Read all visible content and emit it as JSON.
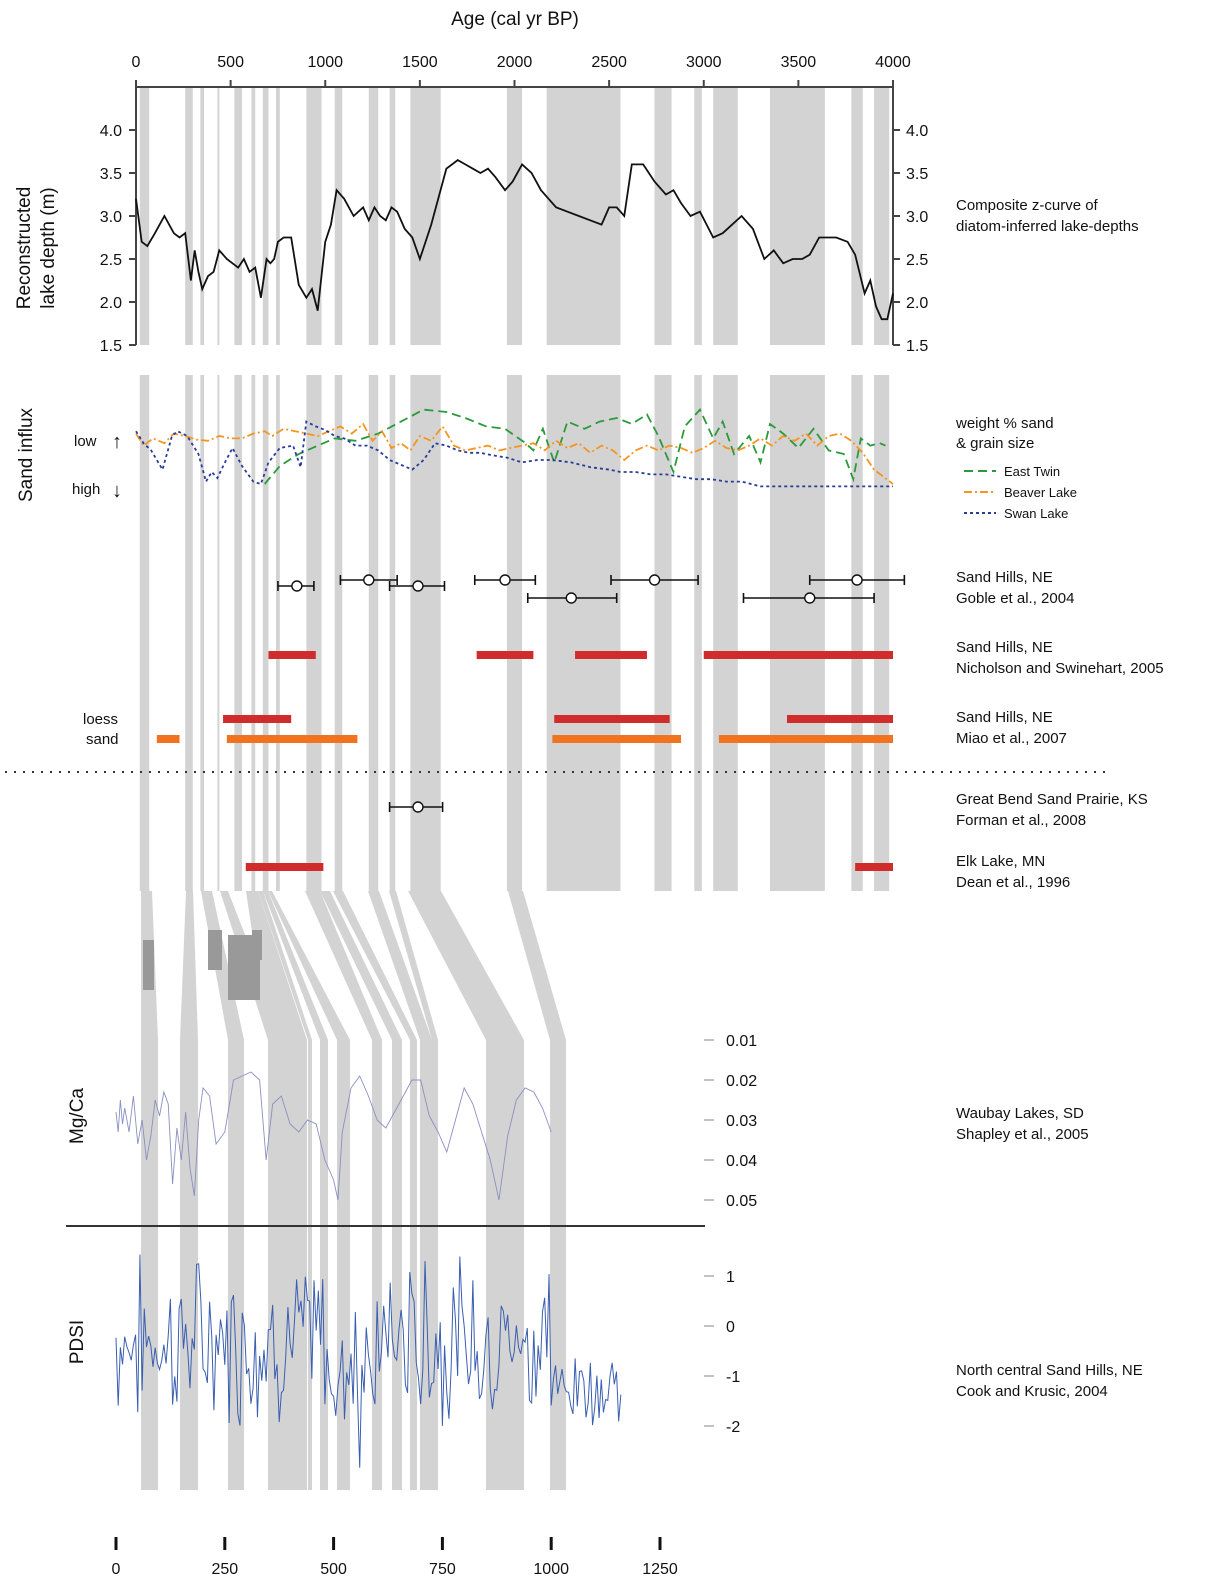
{
  "chart_data": {
    "type": "line",
    "top_axis": {
      "title": "Age (cal yr BP)",
      "ticks": [
        "0",
        "500",
        "1000",
        "1500",
        "2000",
        "2500",
        "3000",
        "3500",
        "4000"
      ],
      "range": [
        0,
        4000
      ]
    },
    "shaded_bands": [
      [
        20,
        70
      ],
      [
        260,
        300
      ],
      [
        340,
        360
      ],
      [
        430,
        440
      ],
      [
        520,
        560
      ],
      [
        610,
        630
      ],
      [
        670,
        700
      ],
      [
        740,
        760
      ],
      [
        900,
        980
      ],
      [
        1050,
        1090
      ],
      [
        1230,
        1280
      ],
      [
        1340,
        1370
      ],
      [
        1450,
        1610
      ],
      [
        1960,
        2040
      ],
      [
        2170,
        2560
      ],
      [
        2740,
        2830
      ],
      [
        2950,
        2990
      ],
      [
        3050,
        3180
      ],
      [
        3350,
        3640
      ],
      [
        3780,
        3840
      ],
      [
        3900,
        3980
      ]
    ],
    "lake_depth": {
      "ylabel": "Reconstructed lake depth (m)",
      "ylabel_lines": [
        "Reconstructed",
        "lake depth (m)"
      ],
      "yticks": [
        "4.0",
        "3.5",
        "3.0",
        "2.5",
        "2.0",
        "1.5"
      ],
      "ylim": [
        1.5,
        4.5
      ],
      "label_lines": [
        "Composite z-curve of",
        "diatom-inferred lake-depths"
      ],
      "x": [
        0,
        30,
        60,
        100,
        150,
        200,
        230,
        260,
        290,
        310,
        330,
        350,
        380,
        410,
        440,
        480,
        510,
        540,
        570,
        600,
        630,
        660,
        690,
        710,
        730,
        750,
        780,
        820,
        860,
        900,
        930,
        960,
        980,
        1000,
        1030,
        1060,
        1100,
        1150,
        1200,
        1230,
        1260,
        1290,
        1320,
        1350,
        1380,
        1420,
        1460,
        1500,
        1560,
        1640,
        1700,
        1740,
        1780,
        1820,
        1860,
        1900,
        1950,
        1990,
        2040,
        2090,
        2140,
        2180,
        2220,
        2280,
        2340,
        2400,
        2460,
        2500,
        2540,
        2580,
        2620,
        2680,
        2740,
        2800,
        2840,
        2880,
        2930,
        2980,
        3050,
        3100,
        3150,
        3200,
        3260,
        3320,
        3370,
        3420,
        3470,
        3520,
        3560,
        3610,
        3650,
        3700,
        3760,
        3800,
        3850,
        3880,
        3910,
        3940,
        3970,
        4000
      ],
      "y": [
        3.2,
        2.7,
        2.65,
        2.8,
        3.0,
        2.8,
        2.75,
        2.8,
        2.25,
        2.6,
        2.35,
        2.15,
        2.3,
        2.35,
        2.6,
        2.5,
        2.45,
        2.4,
        2.5,
        2.35,
        2.4,
        2.05,
        2.5,
        2.45,
        2.5,
        2.7,
        2.75,
        2.75,
        2.2,
        2.05,
        2.15,
        1.9,
        2.3,
        2.7,
        2.9,
        3.3,
        3.2,
        3.0,
        3.1,
        2.95,
        3.1,
        3.0,
        2.95,
        3.1,
        3.05,
        2.85,
        2.75,
        2.5,
        2.9,
        3.55,
        3.65,
        3.6,
        3.55,
        3.5,
        3.55,
        3.45,
        3.3,
        3.4,
        3.6,
        3.5,
        3.3,
        3.2,
        3.1,
        3.05,
        3.0,
        2.95,
        2.9,
        3.1,
        3.1,
        3.0,
        3.6,
        3.6,
        3.4,
        3.25,
        3.3,
        3.15,
        3.0,
        3.05,
        2.75,
        2.8,
        2.9,
        3.0,
        2.85,
        2.5,
        2.6,
        2.45,
        2.5,
        2.5,
        2.55,
        2.75,
        2.75,
        2.75,
        2.7,
        2.55,
        2.1,
        2.25,
        1.95,
        1.8,
        1.8,
        2.1
      ]
    },
    "sand_influx": {
      "ylabel": "Sand influx",
      "low_label": "low",
      "high_label": "high",
      "legend_title_lines": [
        "weight % sand",
        "& grain size"
      ],
      "series": [
        {
          "name": "East Twin",
          "color": "#2a9a3a",
          "x": [
            680,
            760,
            860,
            960,
            1050,
            1160,
            1280,
            1400,
            1520,
            1640,
            1740,
            1850,
            1950,
            2050,
            2100,
            2150,
            2210,
            2280,
            2370,
            2450,
            2540,
            2620,
            2700,
            2760,
            2840,
            2900,
            2980,
            3050,
            3100,
            3160,
            3240,
            3300,
            3350,
            3420,
            3500,
            3580,
            3660,
            3740,
            3790,
            3830,
            3880,
            3930,
            3960
          ],
          "y": [
            0.3,
            0.45,
            0.55,
            0.62,
            0.68,
            0.66,
            0.72,
            0.82,
            0.92,
            0.9,
            0.85,
            0.78,
            0.76,
            0.65,
            0.58,
            0.76,
            0.48,
            0.82,
            0.76,
            0.82,
            0.85,
            0.8,
            0.88,
            0.7,
            0.4,
            0.78,
            0.92,
            0.68,
            0.82,
            0.55,
            0.7,
            0.48,
            0.8,
            0.72,
            0.6,
            0.76,
            0.58,
            0.55,
            0.34,
            0.68,
            0.62,
            0.64,
            0.62
          ]
        },
        {
          "name": "Beaver Lake",
          "color": "#f5951f",
          "x": [
            0,
            40,
            90,
            150,
            200,
            260,
            320,
            380,
            440,
            500,
            560,
            620,
            680,
            720,
            780,
            840,
            900,
            960,
            1020,
            1080,
            1140,
            1200,
            1250,
            1300,
            1350,
            1400,
            1450,
            1500,
            1560,
            1620,
            1680,
            1740,
            1800,
            1860,
            1920,
            1980,
            2040,
            2100,
            2160,
            2220,
            2280,
            2340,
            2400,
            2460,
            2520,
            2580,
            2640,
            2700,
            2760,
            2820,
            2880,
            2940,
            3000,
            3060,
            3120,
            3180,
            3240,
            3300,
            3360,
            3420,
            3480,
            3540,
            3600,
            3660,
            3720,
            3780,
            3840,
            3900,
            3950,
            4000
          ],
          "y": [
            0.72,
            0.62,
            0.68,
            0.64,
            0.72,
            0.7,
            0.67,
            0.66,
            0.7,
            0.68,
            0.68,
            0.72,
            0.74,
            0.7,
            0.76,
            0.74,
            0.72,
            0.7,
            0.74,
            0.78,
            0.72,
            0.8,
            0.66,
            0.74,
            0.6,
            0.64,
            0.58,
            0.7,
            0.66,
            0.78,
            0.62,
            0.58,
            0.6,
            0.62,
            0.58,
            0.6,
            0.62,
            0.64,
            0.58,
            0.66,
            0.6,
            0.64,
            0.56,
            0.62,
            0.58,
            0.5,
            0.58,
            0.62,
            0.58,
            0.62,
            0.6,
            0.56,
            0.6,
            0.66,
            0.6,
            0.58,
            0.62,
            0.68,
            0.62,
            0.7,
            0.66,
            0.72,
            0.62,
            0.7,
            0.72,
            0.66,
            0.56,
            0.42,
            0.36,
            0.3
          ]
        },
        {
          "name": "Swan Lake",
          "color": "#2a3c9a",
          "x": [
            0,
            40,
            80,
            140,
            190,
            220,
            270,
            330,
            370,
            400,
            430,
            470,
            510,
            560,
            620,
            660,
            700,
            760,
            830,
            870,
            900,
            950,
            1000,
            1050,
            1100,
            1160,
            1220,
            1280,
            1340,
            1400,
            1460,
            1520,
            1580,
            1640,
            1700,
            1760,
            1820,
            1880,
            1960,
            2040,
            2120,
            2200,
            2300,
            2400,
            2500,
            2560,
            2640,
            2720,
            2800,
            2880,
            2960,
            3040,
            3120,
            3200,
            3300,
            3400,
            3500,
            3600,
            3700,
            3800,
            3900,
            4000
          ],
          "y": [
            0.74,
            0.64,
            0.58,
            0.42,
            0.7,
            0.74,
            0.7,
            0.55,
            0.32,
            0.4,
            0.35,
            0.48,
            0.6,
            0.45,
            0.32,
            0.3,
            0.48,
            0.6,
            0.62,
            0.44,
            0.82,
            0.78,
            0.75,
            0.7,
            0.68,
            0.62,
            0.62,
            0.58,
            0.5,
            0.46,
            0.42,
            0.5,
            0.64,
            0.62,
            0.58,
            0.56,
            0.56,
            0.54,
            0.52,
            0.48,
            0.5,
            0.5,
            0.48,
            0.44,
            0.42,
            0.4,
            0.4,
            0.38,
            0.38,
            0.36,
            0.34,
            0.34,
            0.32,
            0.32,
            0.28,
            0.28,
            0.28,
            0.28,
            0.28,
            0.28,
            0.28,
            0.28
          ]
        }
      ]
    },
    "date_points": {
      "label_lines": [
        "Sand Hills, NE",
        "Goble et al., 2004"
      ],
      "points": [
        {
          "x": 850,
          "lo": 750,
          "hi": 940,
          "row": 1
        },
        {
          "x": 1230,
          "lo": 1080,
          "hi": 1380,
          "row": 0
        },
        {
          "x": 1490,
          "lo": 1340,
          "hi": 1630,
          "row": 1
        },
        {
          "x": 1950,
          "lo": 1790,
          "hi": 2110,
          "row": 0
        },
        {
          "x": 2300,
          "lo": 2070,
          "hi": 2540,
          "row": 2
        },
        {
          "x": 2740,
          "lo": 2510,
          "hi": 2970,
          "row": 0
        },
        {
          "x": 3810,
          "lo": 3560,
          "hi": 4060,
          "row": 0
        },
        {
          "x": 3560,
          "lo": 3210,
          "hi": 3900,
          "row": 2
        }
      ]
    },
    "nicholson": {
      "label_lines": [
        "Sand Hills, NE",
        "Nicholson and Swinehart, 2005"
      ],
      "bars": [
        [
          700,
          950
        ],
        [
          1800,
          2100
        ],
        [
          2320,
          2700
        ],
        [
          3000,
          4000
        ]
      ]
    },
    "miao": {
      "label_lines": [
        "Sand Hills, NE",
        "Miao et al., 2007"
      ],
      "loess_label": "loess",
      "sand_label": "sand",
      "loess_bars": [
        [
          460,
          820
        ],
        [
          2210,
          2820
        ],
        [
          3440,
          4000
        ]
      ],
      "sand_bars": [
        [
          110,
          230
        ],
        [
          480,
          1170
        ],
        [
          2200,
          2880
        ],
        [
          3080,
          4000
        ]
      ]
    },
    "forman": {
      "label_lines": [
        "Great Bend Sand Prairie, KS",
        "Forman et al., 2008"
      ],
      "point": {
        "x": 1490,
        "lo": 1340,
        "hi": 1620
      }
    },
    "dean": {
      "label_lines": [
        "Elk Lake, MN",
        "Dean et al., 1996"
      ],
      "bars": [
        [
          580,
          990
        ],
        [
          3800,
          4000
        ]
      ]
    },
    "mg_ca": {
      "ylabel": "Mg/Ca",
      "yticks": [
        "0.01",
        "0.02",
        "0.03",
        "0.04",
        "0.05"
      ],
      "label_lines": [
        "Waubay Lakes, SD",
        "Shapley et al., 2005"
      ],
      "ylim": [
        0.005,
        0.055
      ],
      "x": [
        0,
        5,
        10,
        15,
        20,
        30,
        40,
        50,
        60,
        70,
        80,
        90,
        100,
        110,
        120,
        130,
        140,
        150,
        160,
        170,
        180,
        190,
        200,
        215,
        230,
        250,
        270,
        290,
        310,
        330,
        345,
        360,
        380,
        400,
        420,
        440,
        460,
        480,
        500,
        510,
        520,
        540,
        560,
        580,
        600,
        620,
        640,
        660,
        680,
        700,
        720,
        740,
        760,
        780,
        800,
        820,
        840,
        860,
        880,
        900,
        920,
        940,
        960,
        980,
        1000
      ],
      "y": [
        0.028,
        0.033,
        0.025,
        0.031,
        0.027,
        0.033,
        0.024,
        0.036,
        0.03,
        0.04,
        0.034,
        0.025,
        0.029,
        0.023,
        0.026,
        0.046,
        0.032,
        0.04,
        0.028,
        0.042,
        0.049,
        0.03,
        0.022,
        0.024,
        0.036,
        0.033,
        0.02,
        0.019,
        0.018,
        0.02,
        0.04,
        0.026,
        0.024,
        0.031,
        0.033,
        0.03,
        0.031,
        0.04,
        0.045,
        0.05,
        0.033,
        0.022,
        0.019,
        0.024,
        0.03,
        0.032,
        0.028,
        0.024,
        0.02,
        0.02,
        0.029,
        0.033,
        0.038,
        0.03,
        0.022,
        0.026,
        0.033,
        0.04,
        0.05,
        0.034,
        0.025,
        0.022,
        0.023,
        0.027,
        0.033
      ]
    },
    "pdsi": {
      "ylabel": "PDSI",
      "yticks": [
        "1",
        "0",
        "-1",
        "-2"
      ],
      "label_lines": [
        "North central Sand Hills, NE",
        "Cook and Krusic, 2004"
      ],
      "ylim": [
        -3.2,
        2.2
      ],
      "x_ticks": [
        "0",
        "250",
        "500",
        "750",
        "1000",
        "1250"
      ],
      "x_range": [
        0,
        1250
      ]
    }
  }
}
